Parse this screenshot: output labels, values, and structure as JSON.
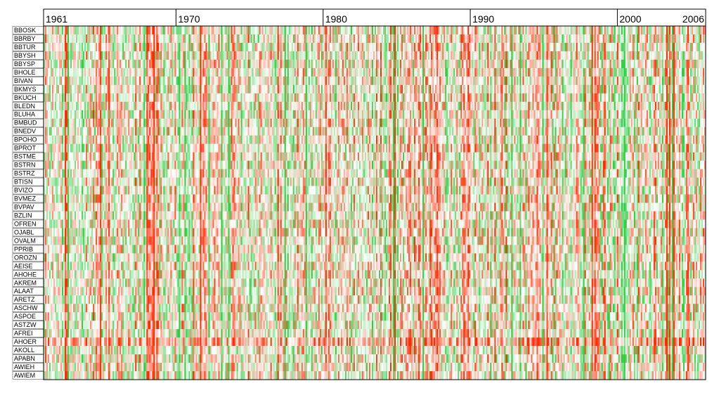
{
  "chart_data": {
    "type": "heatmap",
    "title": "",
    "xlabel": "",
    "ylabel": "",
    "x_range": [
      1961,
      2006
    ],
    "x_tick_labels": [
      "1961",
      "1970",
      "1980",
      "1990",
      "2000",
      "2006"
    ],
    "x_tick_values": [
      1961,
      1970,
      1980,
      1990,
      2000,
      2006
    ],
    "rows": [
      "BBOSK",
      "BBRBY",
      "BBTUR",
      "BBYSH",
      "BBYSP",
      "BHOLE",
      "BIVAN",
      "BKMYS",
      "BKUCH",
      "BLEDN",
      "BLUHA",
      "BMBUD",
      "BNEDV",
      "BPOHO",
      "BPROT",
      "BSTME",
      "BSTRN",
      "BSTRZ",
      "BTISN",
      "BVIZO",
      "BVMEZ",
      "BVPAV",
      "BZLIN",
      "OFREN",
      "OJABL",
      "OVALM",
      "PPRIB",
      "OROZN",
      "AEISE",
      "AHOHE",
      "AKREM",
      "ALAAT",
      "ARETZ",
      "ASCHW",
      "ASPOE",
      "ASTZW",
      "AFREI",
      "AHOER",
      "AKOLL",
      "APABN",
      "AWIEH",
      "AWIEM"
    ],
    "color_scale": {
      "low": "#2ecc40",
      "mid": "#ffffff",
      "high": "#ff2a00"
    },
    "grid": false,
    "legend": "none"
  }
}
